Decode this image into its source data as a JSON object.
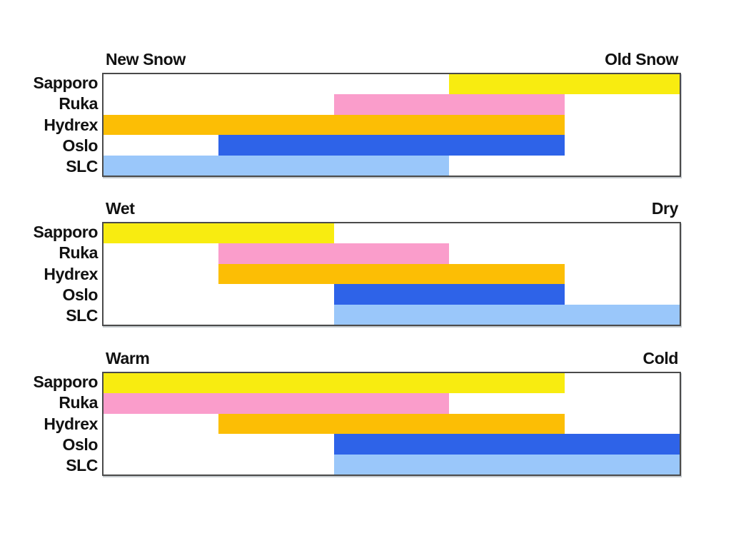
{
  "page": {
    "background": "#ffffff",
    "text_color": "#111111",
    "border_color": "#4a4a4a"
  },
  "chart_data": [
    {
      "type": "bar",
      "subtype": "horizontal-range",
      "title": "",
      "left_label": "New Snow",
      "right_label": "Old Snow",
      "categories": [
        "Sapporo",
        "Ruka",
        "Hydrex",
        "Oslo",
        "SLC"
      ],
      "series_colors": [
        "#f8ec10",
        "#fa9dcb",
        "#fcbe05",
        "#2e63e8",
        "#9ac7fa"
      ],
      "scale": [
        0,
        10
      ],
      "ranges": [
        [
          6,
          10
        ],
        [
          4,
          8
        ],
        [
          0,
          8
        ],
        [
          2,
          8
        ],
        [
          0,
          6
        ]
      ],
      "grid": false,
      "legend": "none"
    },
    {
      "type": "bar",
      "subtype": "horizontal-range",
      "title": "",
      "left_label": "Wet",
      "right_label": "Dry",
      "categories": [
        "Sapporo",
        "Ruka",
        "Hydrex",
        "Oslo",
        "SLC"
      ],
      "series_colors": [
        "#f8ec10",
        "#fa9dcb",
        "#fcbe05",
        "#2e63e8",
        "#9ac7fa"
      ],
      "scale": [
        0,
        10
      ],
      "ranges": [
        [
          0,
          4
        ],
        [
          2,
          6
        ],
        [
          2,
          8
        ],
        [
          4,
          8
        ],
        [
          4,
          10
        ]
      ],
      "grid": false,
      "legend": "none"
    },
    {
      "type": "bar",
      "subtype": "horizontal-range",
      "title": "",
      "left_label": "Warm",
      "right_label": "Cold",
      "categories": [
        "Sapporo",
        "Ruka",
        "Hydrex",
        "Oslo",
        "SLC"
      ],
      "series_colors": [
        "#f8ec10",
        "#fa9dcb",
        "#fcbe05",
        "#2e63e8",
        "#9ac7fa"
      ],
      "scale": [
        0,
        10
      ],
      "ranges": [
        [
          0,
          8
        ],
        [
          0,
          6
        ],
        [
          2,
          8
        ],
        [
          4,
          10
        ],
        [
          4,
          10
        ]
      ],
      "grid": false,
      "legend": "none"
    }
  ]
}
